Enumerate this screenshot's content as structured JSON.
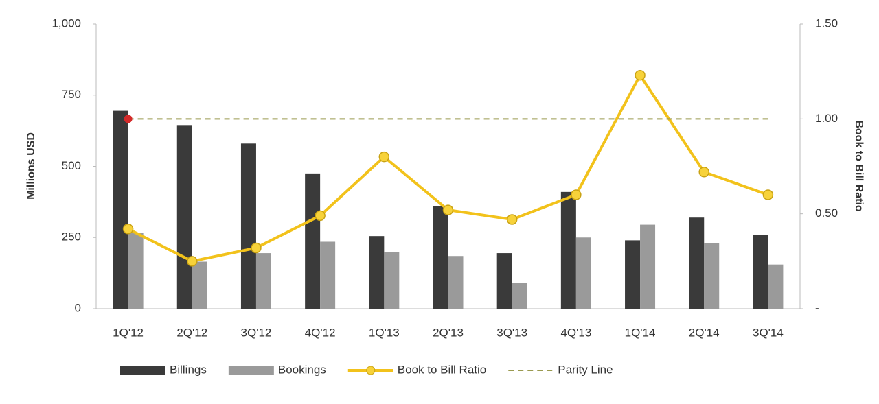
{
  "chart_data": {
    "type": "bar-line",
    "categories": [
      "1Q'12",
      "2Q'12",
      "3Q'12",
      "4Q'12",
      "1Q'13",
      "2Q'13",
      "3Q'13",
      "4Q'13",
      "1Q'14",
      "2Q'14",
      "3Q'14"
    ],
    "ylabel": "Millions USD",
    "y2label": "Book to Bill Ratio",
    "ylim": [
      0,
      1000
    ],
    "yticks": [
      0,
      250,
      500,
      750,
      {
        "value": 1000,
        "label": "1,000"
      }
    ],
    "y2lim": [
      0,
      1.5
    ],
    "y2ticks": [
      {
        "value": 0,
        "label": "-"
      },
      {
        "value": 0.5,
        "label": "0.50"
      },
      {
        "value": 1,
        "label": "1.00"
      },
      {
        "value": 1.5,
        "label": "1.50"
      }
    ],
    "series": [
      {
        "name": "Billings",
        "type": "bar",
        "color": "#3a3a3a",
        "values": [
          695,
          645,
          580,
          475,
          255,
          360,
          195,
          410,
          240,
          320,
          260
        ]
      },
      {
        "name": "Bookings",
        "type": "bar",
        "color": "#9a9a9a",
        "values": [
          265,
          165,
          195,
          235,
          200,
          185,
          90,
          250,
          295,
          230,
          155
        ]
      },
      {
        "name": "Book to Bill Ratio",
        "type": "line",
        "axis": "y2",
        "color": "#f2c21b",
        "values": [
          0.42,
          0.25,
          0.32,
          0.49,
          0.8,
          0.52,
          0.47,
          0.6,
          1.23,
          0.72,
          0.6
        ]
      },
      {
        "name": "Parity Line",
        "type": "line",
        "axis": "y2",
        "dashed": true,
        "color": "#9a9a50",
        "values": [
          1,
          1,
          1,
          1,
          1,
          1,
          1,
          1,
          1,
          1,
          1
        ]
      }
    ]
  }
}
